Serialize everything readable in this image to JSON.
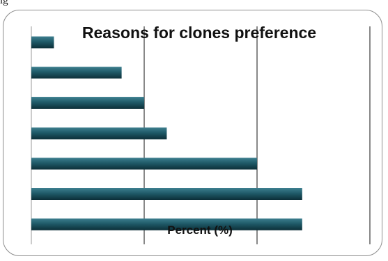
{
  "caption": "ig",
  "colors": {
    "bar_light": "#3d7f8f",
    "bar_mid": "#1f5a68",
    "bar_dark": "#0c2f38",
    "grid": "#111111",
    "axis": "#999999",
    "frame": "#8c8c8c"
  },
  "chart_data": {
    "type": "bar",
    "orientation": "horizontal",
    "title": "Reasons for clones preference",
    "xlabel": "Percent (%)",
    "ylabel": "",
    "categories": [
      "",
      "",
      "",
      "",
      "",
      "",
      ""
    ],
    "values": [
      2,
      8,
      10,
      12,
      20,
      24,
      24
    ],
    "xlim": [
      0,
      30
    ],
    "grid": true,
    "gridlines_x": [
      10,
      20,
      30
    ],
    "legend": "none"
  }
}
